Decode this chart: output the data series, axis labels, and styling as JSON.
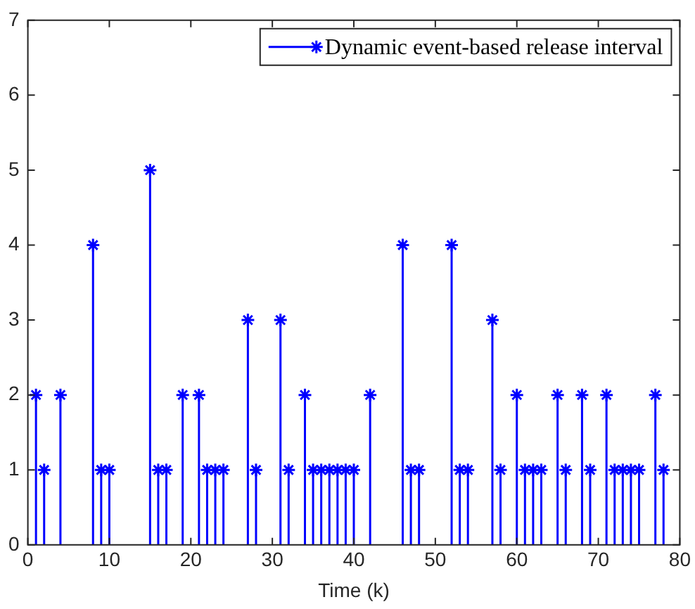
{
  "chart_data": {
    "type": "lollipop",
    "xlabel": "Time (k)",
    "legend": "top right",
    "grid": false,
    "marker": "cross",
    "xlim": [
      0,
      80
    ],
    "xticks": [
      0,
      10,
      20,
      30,
      40,
      50,
      60,
      70,
      80
    ],
    "ylim": [
      0,
      7
    ],
    "yticks": [
      0,
      1,
      2,
      3,
      4,
      5,
      6,
      7
    ],
    "series": [
      {
        "name": "Dynamic event-based release interval",
        "color": "#0000ff",
        "x": [
          1,
          2,
          4,
          8,
          9,
          10,
          15,
          16,
          17,
          19,
          21,
          22,
          23,
          24,
          27,
          28,
          31,
          32,
          34,
          35,
          36,
          37,
          38,
          39,
          40,
          42,
          46,
          47,
          48,
          52,
          53,
          54,
          57,
          58,
          60,
          61,
          62,
          63,
          65,
          66,
          68,
          69,
          71,
          72,
          73,
          74,
          75,
          77,
          78
        ],
        "values": [
          2,
          1,
          2,
          4,
          1,
          1,
          5,
          1,
          1,
          2,
          2,
          1,
          1,
          1,
          3,
          1,
          3,
          1,
          2,
          1,
          1,
          1,
          1,
          1,
          1,
          2,
          4,
          1,
          1,
          4,
          1,
          1,
          3,
          1,
          2,
          1,
          1,
          1,
          2,
          1,
          2,
          1,
          2,
          1,
          1,
          1,
          1,
          2,
          1
        ]
      }
    ]
  }
}
